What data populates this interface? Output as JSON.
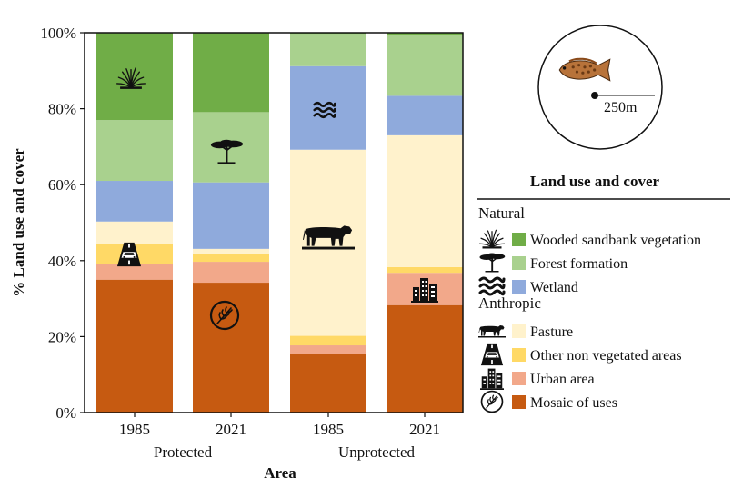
{
  "chart_data": {
    "type": "bar",
    "stacked": true,
    "ylabel": "% Land use and cover",
    "xlabel": "Area",
    "ylim": [
      0,
      100
    ],
    "yticks": [
      0,
      20,
      40,
      60,
      80,
      100
    ],
    "ytick_labels": [
      "0%",
      "20%",
      "40%",
      "60%",
      "80%",
      "100%"
    ],
    "categories": [
      "1985",
      "2021",
      "1985",
      "2021"
    ],
    "groups": [
      {
        "label": "Protected",
        "categories": [
          0,
          1
        ]
      },
      {
        "label": "Unprotected",
        "categories": [
          2,
          3
        ]
      }
    ],
    "series": [
      {
        "name": "Mosaic of uses",
        "color": "#c65a11",
        "values": [
          35,
          34.2,
          15.5,
          28.3
        ]
      },
      {
        "name": "Urban area",
        "color": "#f2a88a",
        "values": [
          4,
          5.5,
          2.2,
          8.5
        ]
      },
      {
        "name": "Other non vegetated areas",
        "color": "#ffd966",
        "values": [
          5.5,
          2.2,
          2.5,
          1.5
        ]
      },
      {
        "name": "Pasture",
        "color": "#fff2cc",
        "values": [
          5.8,
          1.2,
          49,
          34.7
        ]
      },
      {
        "name": "Wetland",
        "color": "#8faadc",
        "values": [
          10.7,
          17.5,
          22,
          10.4
        ]
      },
      {
        "name": "Forest formation",
        "color": "#a9d18e",
        "values": [
          16,
          18.5,
          8.5,
          16
        ]
      },
      {
        "name": "Wooded sandbank vegetation",
        "color": "#70ad47",
        "values": [
          23,
          20.9,
          0.3,
          0.6
        ]
      }
    ],
    "legend": {
      "title": "Land use and cover",
      "placement": "right",
      "groups": [
        {
          "heading": "Natural",
          "items": [
            {
              "label": "Wooded sandbank vegetation",
              "icon": "shrub-icon",
              "color": "#70ad47"
            },
            {
              "label": "Forest formation",
              "icon": "acacia-tree-icon",
              "color": "#a9d18e"
            },
            {
              "label": "Wetland",
              "icon": "water-waves-icon",
              "color": "#8faadc"
            }
          ]
        },
        {
          "heading": "Anthropic",
          "items": [
            {
              "label": "Pasture",
              "icon": "cow-icon",
              "color": "#fff2cc"
            },
            {
              "label": "Other non vegetated areas",
              "icon": "road-car-icon",
              "color": "#ffd966"
            },
            {
              "label": "Urban area",
              "icon": "buildings-icon",
              "color": "#f2a88a"
            },
            {
              "label": "Mosaic of uses",
              "icon": "wheat-circle-icon",
              "color": "#c65a11"
            }
          ]
        }
      ]
    },
    "inset": {
      "scale_label": "250m",
      "icon": "fish-icon"
    },
    "grid": false
  }
}
